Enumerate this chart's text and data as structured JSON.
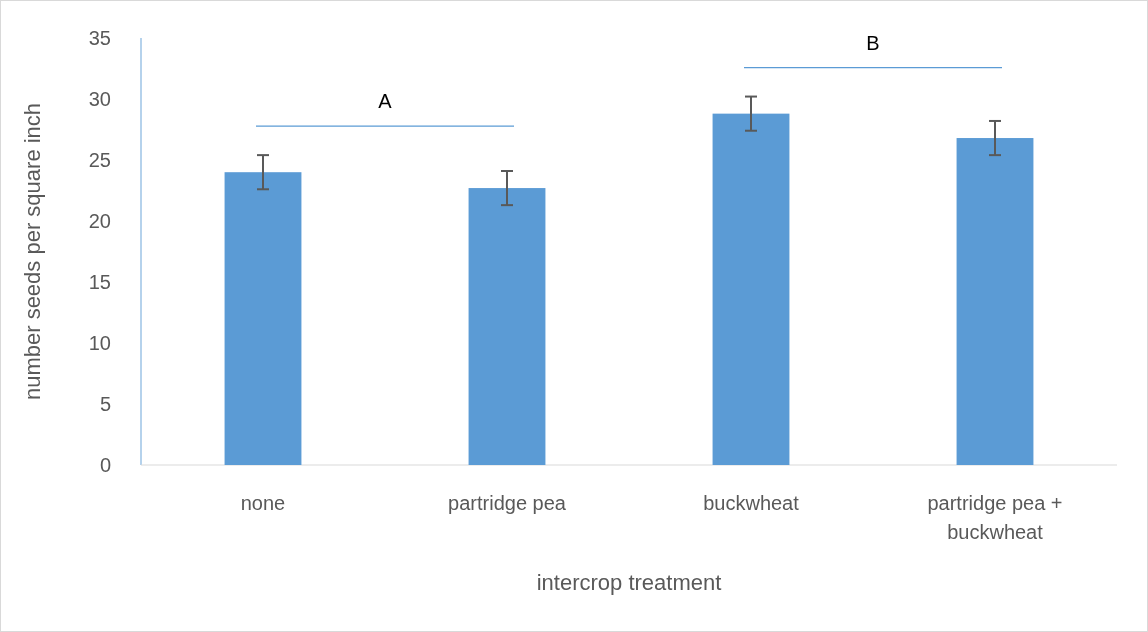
{
  "chart_data": {
    "type": "bar",
    "xlabel": "intercrop treatment",
    "ylabel": "number seeds per square inch",
    "categories": [
      "none",
      "partridge pea",
      "buckwheat",
      "partridge pea + buckwheat"
    ],
    "values": [
      24.0,
      22.7,
      28.8,
      26.8
    ],
    "errors": [
      1.4,
      1.4,
      1.4,
      1.4
    ],
    "color": "#5b9bd5",
    "ylim": [
      0,
      35
    ],
    "yticks": [
      0,
      5,
      10,
      15,
      20,
      25,
      30,
      35
    ],
    "annotations": [
      "A",
      "B"
    ]
  }
}
